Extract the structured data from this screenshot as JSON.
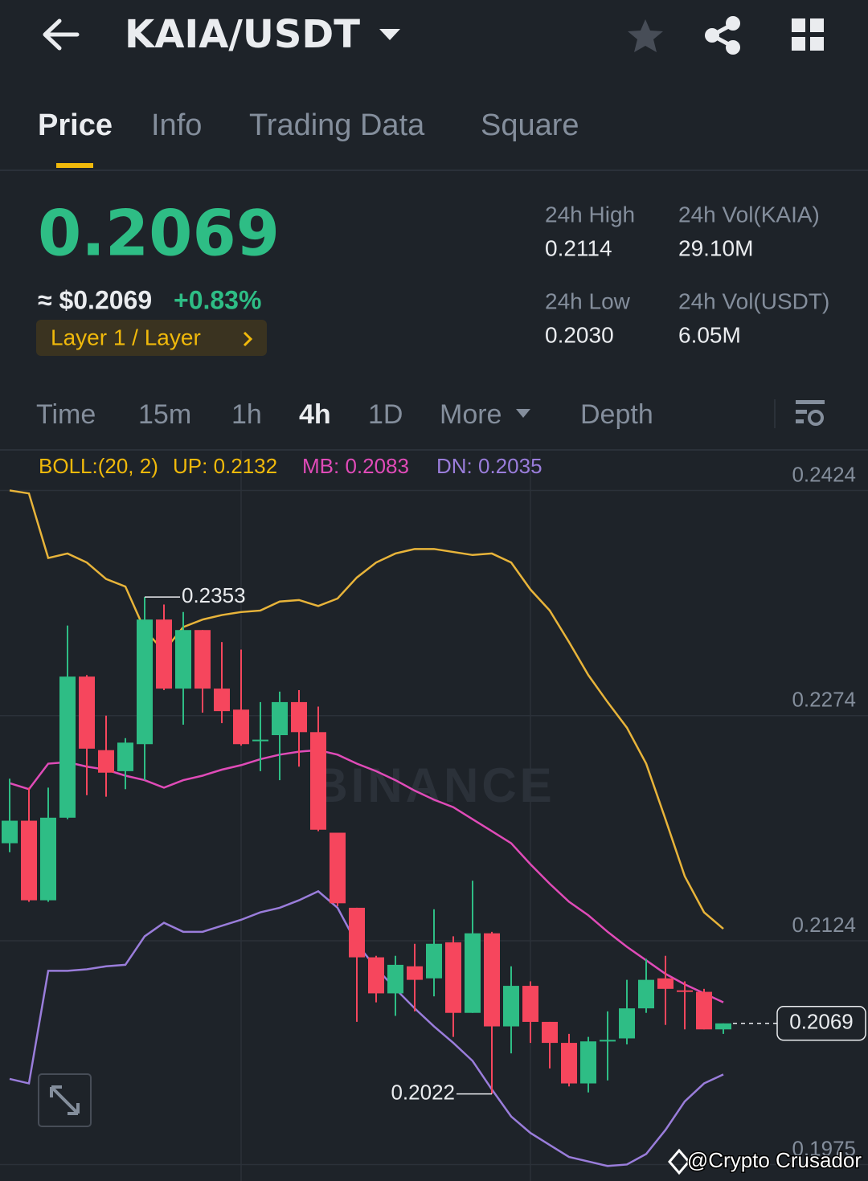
{
  "header": {
    "pair": "KAIA/USDT"
  },
  "tabs": [
    "Price",
    "Info",
    "Trading Data",
    "Square"
  ],
  "ticker": {
    "price": "0.2069",
    "usd": "≈ $0.2069",
    "change": "+0.83%",
    "tag": "Layer 1 / Layer",
    "stats": [
      {
        "label": "24h High",
        "value": "0.2114"
      },
      {
        "label": "24h Vol(KAIA)",
        "value": "29.10M"
      },
      {
        "label": "24h Low",
        "value": "0.2030"
      },
      {
        "label": "24h Vol(USDT)",
        "value": "6.05M"
      }
    ]
  },
  "intervals": [
    "Time",
    "15m",
    "1h",
    "4h",
    "1D",
    "More",
    "Depth"
  ],
  "indicator": {
    "name": "BOLL:(20, 2)",
    "up": "UP: 0.2132",
    "mb": "MB: 0.2083",
    "dn": "DN: 0.2035"
  },
  "chart_watermark": "BINANCE",
  "watermark": "@Crypto Crusador",
  "chart_data": {
    "type": "candlestick",
    "up_color": "#2ebd85",
    "down_color": "#f6465d",
    "open": [
      0.2189,
      0.2204,
      0.2151,
      0.2206,
      0.23,
      0.2251,
      0.2237,
      0.2255,
      0.2338,
      0.2292,
      0.2331,
      0.2292,
      0.2278,
      0.2257,
      0.2261,
      0.2283,
      0.2263,
      0.2196,
      0.2146,
      0.2113,
      0.2089,
      0.2107,
      0.2099,
      0.2123,
      0.2076,
      0.2129,
      0.2067,
      0.2094,
      0.207,
      0.2056,
      0.2029,
      0.2057,
      0.2059,
      0.2079,
      0.2099,
      0.2091,
      0.209,
      0.2065
    ],
    "high": [
      0.2232,
      0.2226,
      0.2226,
      0.2334,
      0.2301,
      0.2274,
      0.2259,
      0.2353,
      0.2348,
      0.2343,
      0.2331,
      0.2323,
      0.2318,
      0.2283,
      0.229,
      0.2291,
      0.228,
      0.2196,
      0.2146,
      0.2114,
      0.2114,
      0.2122,
      0.2145,
      0.2127,
      0.2164,
      0.213,
      0.2107,
      0.2097,
      0.207,
      0.2062,
      0.206,
      0.2077,
      0.2098,
      0.2112,
      0.2114,
      0.2097,
      0.2092,
      0.2069
    ],
    "low": [
      0.2183,
      0.215,
      0.215,
      0.2205,
      0.2221,
      0.222,
      0.2225,
      0.2231,
      0.2291,
      0.2268,
      0.2276,
      0.2269,
      0.2254,
      0.2237,
      0.2231,
      0.224,
      0.2197,
      0.2147,
      0.207,
      0.2083,
      0.2074,
      0.2077,
      0.2087,
      0.206,
      0.2076,
      0.2022,
      0.2049,
      0.2056,
      0.2039,
      0.2027,
      0.2023,
      0.2031,
      0.2055,
      0.2076,
      0.2068,
      0.2065,
      0.2065,
      0.2062
    ],
    "close": [
      0.2204,
      0.2151,
      0.2206,
      0.23,
      0.2252,
      0.2236,
      0.2256,
      0.2338,
      0.2292,
      0.2331,
      0.2292,
      0.2277,
      0.2255,
      0.2258,
      0.2283,
      0.2263,
      0.2198,
      0.2149,
      0.2113,
      0.2089,
      0.2108,
      0.2098,
      0.2122,
      0.2076,
      0.2129,
      0.2067,
      0.2094,
      0.207,
      0.2056,
      0.2029,
      0.2057,
      0.2058,
      0.2079,
      0.2098,
      0.2092,
      0.209,
      0.2065,
      0.2069
    ],
    "lines": [
      {
        "color": "#e8b43a",
        "values": [
          0.2424,
          0.2422,
          0.2379,
          0.2382,
          0.2376,
          0.2365,
          0.236,
          0.2331,
          0.2317,
          0.2333,
          0.2338,
          0.2341,
          0.2343,
          0.2344,
          0.235,
          0.2351,
          0.2347,
          0.2352,
          0.2366,
          0.2376,
          0.2382,
          0.2385,
          0.2385,
          0.2383,
          0.2381,
          0.2382,
          0.2376,
          0.2358,
          0.2344,
          0.2323,
          0.2301,
          0.2283,
          0.2266,
          0.2242,
          0.2205,
          0.2167,
          0.2143,
          0.2132
        ]
      },
      {
        "color": "#e04bb8",
        "values": [
          0.2229,
          0.2225,
          0.2242,
          0.2243,
          0.224,
          0.2238,
          0.2234,
          0.2231,
          0.2226,
          0.2231,
          0.2234,
          0.2238,
          0.2241,
          0.2245,
          0.2248,
          0.225,
          0.2251,
          0.2248,
          0.2242,
          0.2237,
          0.2231,
          0.2224,
          0.2218,
          0.2213,
          0.2205,
          0.2197,
          0.2189,
          0.2175,
          0.2162,
          0.215,
          0.2141,
          0.213,
          0.212,
          0.2111,
          0.2102,
          0.2095,
          0.2089,
          0.2083
        ]
      },
      {
        "color": "#9a7ddb",
        "values": [
          0.2032,
          0.2029,
          0.2104,
          0.2104,
          0.2105,
          0.2107,
          0.2108,
          0.2127,
          0.2136,
          0.213,
          0.213,
          0.2134,
          0.2138,
          0.2143,
          0.2146,
          0.2151,
          0.2157,
          0.2146,
          0.2122,
          0.2106,
          0.2092,
          0.2079,
          0.2067,
          0.2056,
          0.2044,
          0.2025,
          0.2007,
          0.1996,
          0.1988,
          0.198,
          0.1977,
          0.1974,
          0.1975,
          0.1982,
          0.1998,
          0.2017,
          0.2029,
          0.2035
        ]
      }
    ],
    "ylim": [
      0.1964,
      0.2451
    ],
    "yticks": [
      0.2424,
      0.2274,
      0.2124,
      0.1975
    ],
    "grid": true,
    "max_label": 0.2353,
    "min_label": 0.2022,
    "last_price": 0.2069
  }
}
